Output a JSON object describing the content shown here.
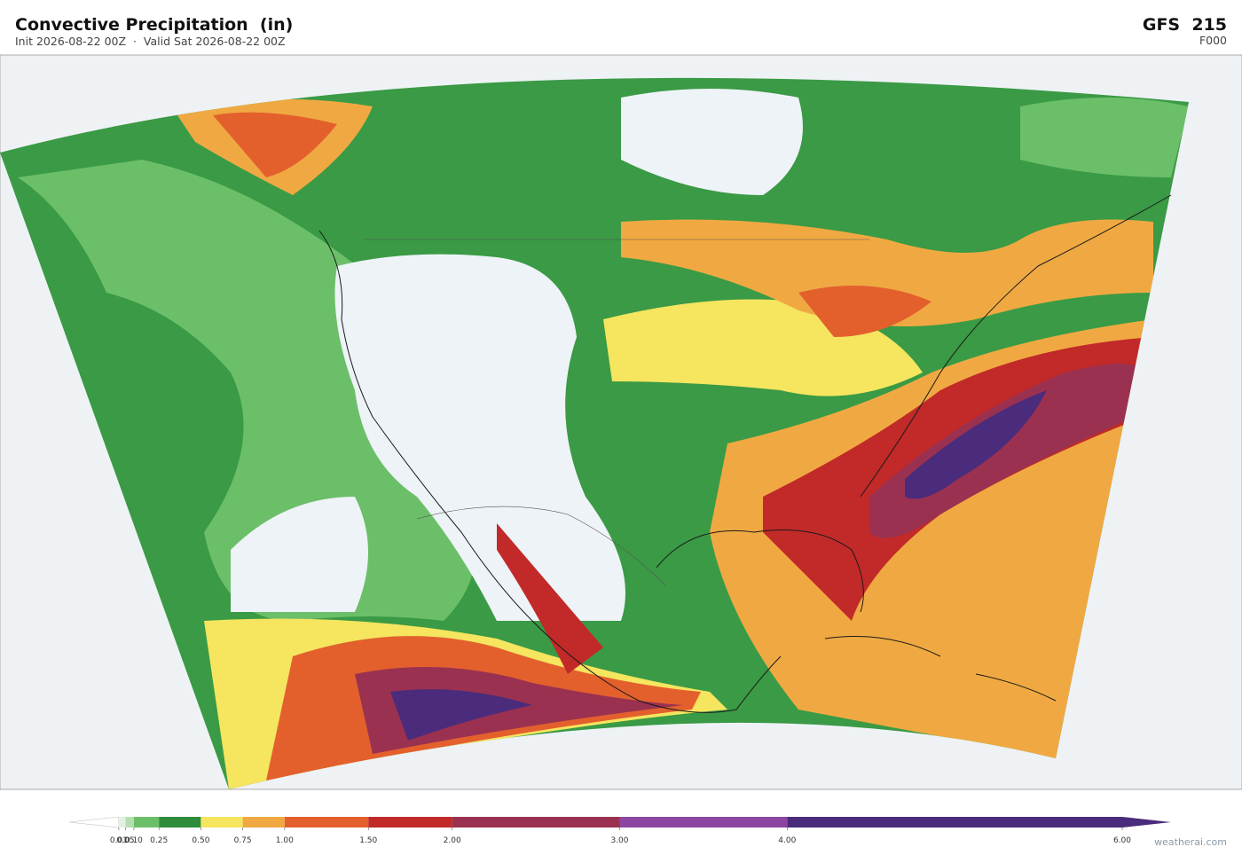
{
  "header": {
    "title": "Convective Precipitation  (in)",
    "subtitle": "Init 2026-08-22 00Z  ·  Valid Sat 2026-08-22 00Z",
    "model": "GFS  215",
    "forecast_hour": "F000"
  },
  "colorbar": {
    "range": [
      0,
      6
    ],
    "ticks": [
      0.01,
      0.05,
      {
        "value": 0.1,
        "label": "0.10"
      },
      0.25,
      {
        "value": 0.5,
        "label": "0.50"
      },
      0.75,
      {
        "value": 1,
        "label": "1.00"
      },
      {
        "value": 1.5,
        "label": "1.50"
      },
      {
        "value": 2,
        "label": "2.00"
      },
      {
        "value": 3,
        "label": "3.00"
      },
      {
        "value": 4,
        "label": "4.00"
      },
      {
        "value": 6,
        "label": "6.00"
      }
    ],
    "colors": [
      "#e4f1e2",
      "#b6dfb1",
      "#6cbf69",
      "#2f8c3b",
      "#f5e55f",
      "#f0a942",
      "#e3602d",
      "#c12a28",
      "#9b3150",
      "#8c46a1",
      "#4b2b7b"
    ]
  },
  "footer": {
    "credit": "weatherai.com"
  }
}
